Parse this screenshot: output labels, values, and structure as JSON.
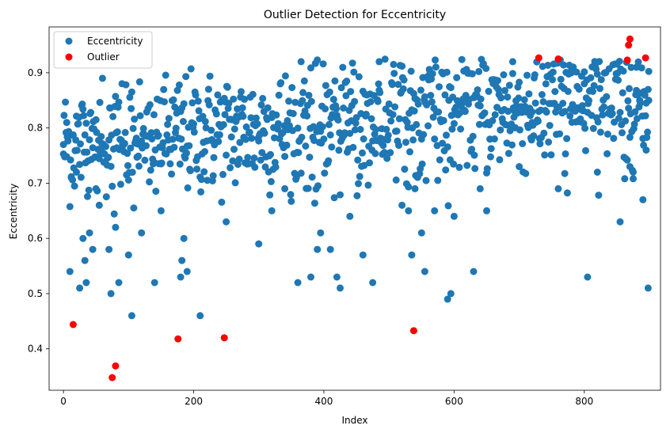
{
  "chart_data": {
    "type": "scatter",
    "title": "Outlier Detection for Eccentricity",
    "xlabel": "Index",
    "ylabel": "Eccentricity",
    "xlim": [
      -22,
      917
    ],
    "ylim": [
      0.325,
      0.983
    ],
    "xticks": [
      0,
      200,
      400,
      600,
      800
    ],
    "yticks": [
      0.4,
      0.5,
      0.6,
      0.7,
      0.8,
      0.9
    ],
    "ytick_labels": [
      "0.4",
      "0.5",
      "0.6",
      "0.7",
      "0.8",
      "0.9"
    ],
    "xtick_labels": [
      "0",
      "200",
      "400",
      "600",
      "800"
    ],
    "grid": false,
    "legend": {
      "position": "top-left",
      "entries": [
        "Eccentricity",
        "Outlier"
      ]
    },
    "series": [
      {
        "name": "Eccentricity",
        "color": "#1f77b4",
        "n_points": 900,
        "x_range": [
          0,
          899
        ],
        "typical_y_band": [
          0.64,
          0.92
        ],
        "notes_visible": "dense band rising from about 0.77 at x=0 to about 0.85 at x=899",
        "sample_points": [
          [
            0,
            0.77
          ],
          [
            5,
            0.81
          ],
          [
            10,
            0.54
          ],
          [
            12,
            0.71
          ],
          [
            20,
            0.72
          ],
          [
            25,
            0.51
          ],
          [
            30,
            0.6
          ],
          [
            33,
            0.56
          ],
          [
            35,
            0.52
          ],
          [
            40,
            0.61
          ],
          [
            45,
            0.58
          ],
          [
            50,
            0.69
          ],
          [
            55,
            0.66
          ],
          [
            60,
            0.89
          ],
          [
            70,
            0.58
          ],
          [
            73,
            0.5
          ],
          [
            80,
            0.62
          ],
          [
            85,
            0.52
          ],
          [
            90,
            0.88
          ],
          [
            100,
            0.57
          ],
          [
            105,
            0.46
          ],
          [
            120,
            0.61
          ],
          [
            140,
            0.52
          ],
          [
            150,
            0.65
          ],
          [
            180,
            0.53
          ],
          [
            182,
            0.56
          ],
          [
            185,
            0.6
          ],
          [
            190,
            0.54
          ],
          [
            210,
            0.46
          ],
          [
            250,
            0.63
          ],
          [
            300,
            0.59
          ],
          [
            320,
            0.65
          ],
          [
            340,
            0.69
          ],
          [
            360,
            0.52
          ],
          [
            365,
            0.92
          ],
          [
            380,
            0.53
          ],
          [
            390,
            0.58
          ],
          [
            395,
            0.61
          ],
          [
            410,
            0.58
          ],
          [
            420,
            0.53
          ],
          [
            425,
            0.51
          ],
          [
            440,
            0.64
          ],
          [
            460,
            0.57
          ],
          [
            475,
            0.52
          ],
          [
            485,
            0.92
          ],
          [
            520,
            0.66
          ],
          [
            530,
            0.65
          ],
          [
            535,
            0.57
          ],
          [
            540,
            0.69
          ],
          [
            550,
            0.61
          ],
          [
            555,
            0.54
          ],
          [
            570,
            0.65
          ],
          [
            590,
            0.49
          ],
          [
            595,
            0.5
          ],
          [
            600,
            0.64
          ],
          [
            630,
            0.54
          ],
          [
            640,
            0.69
          ],
          [
            650,
            0.65
          ],
          [
            690,
            0.92
          ],
          [
            700,
            0.73
          ],
          [
            720,
            0.81
          ],
          [
            760,
            0.69
          ],
          [
            770,
            0.83
          ],
          [
            780,
            0.9
          ],
          [
            800,
            0.88
          ],
          [
            805,
            0.53
          ],
          [
            820,
            0.72
          ],
          [
            855,
            0.63
          ],
          [
            870,
            0.73
          ],
          [
            875,
            0.72
          ],
          [
            880,
            0.91
          ],
          [
            890,
            0.67
          ],
          [
            895,
            0.76
          ],
          [
            898,
            0.51
          ],
          [
            899,
            0.85
          ]
        ]
      },
      {
        "name": "Outlier",
        "color": "#ff0000",
        "points": [
          [
            15,
            0.444
          ],
          [
            75,
            0.348
          ],
          [
            80,
            0.369
          ],
          [
            176,
            0.418
          ],
          [
            247,
            0.42
          ],
          [
            538,
            0.433
          ],
          [
            730,
            0.927
          ],
          [
            760,
            0.925
          ],
          [
            866,
            0.923
          ],
          [
            868,
            0.95
          ],
          [
            870,
            0.961
          ],
          [
            894,
            0.927
          ]
        ]
      }
    ]
  }
}
